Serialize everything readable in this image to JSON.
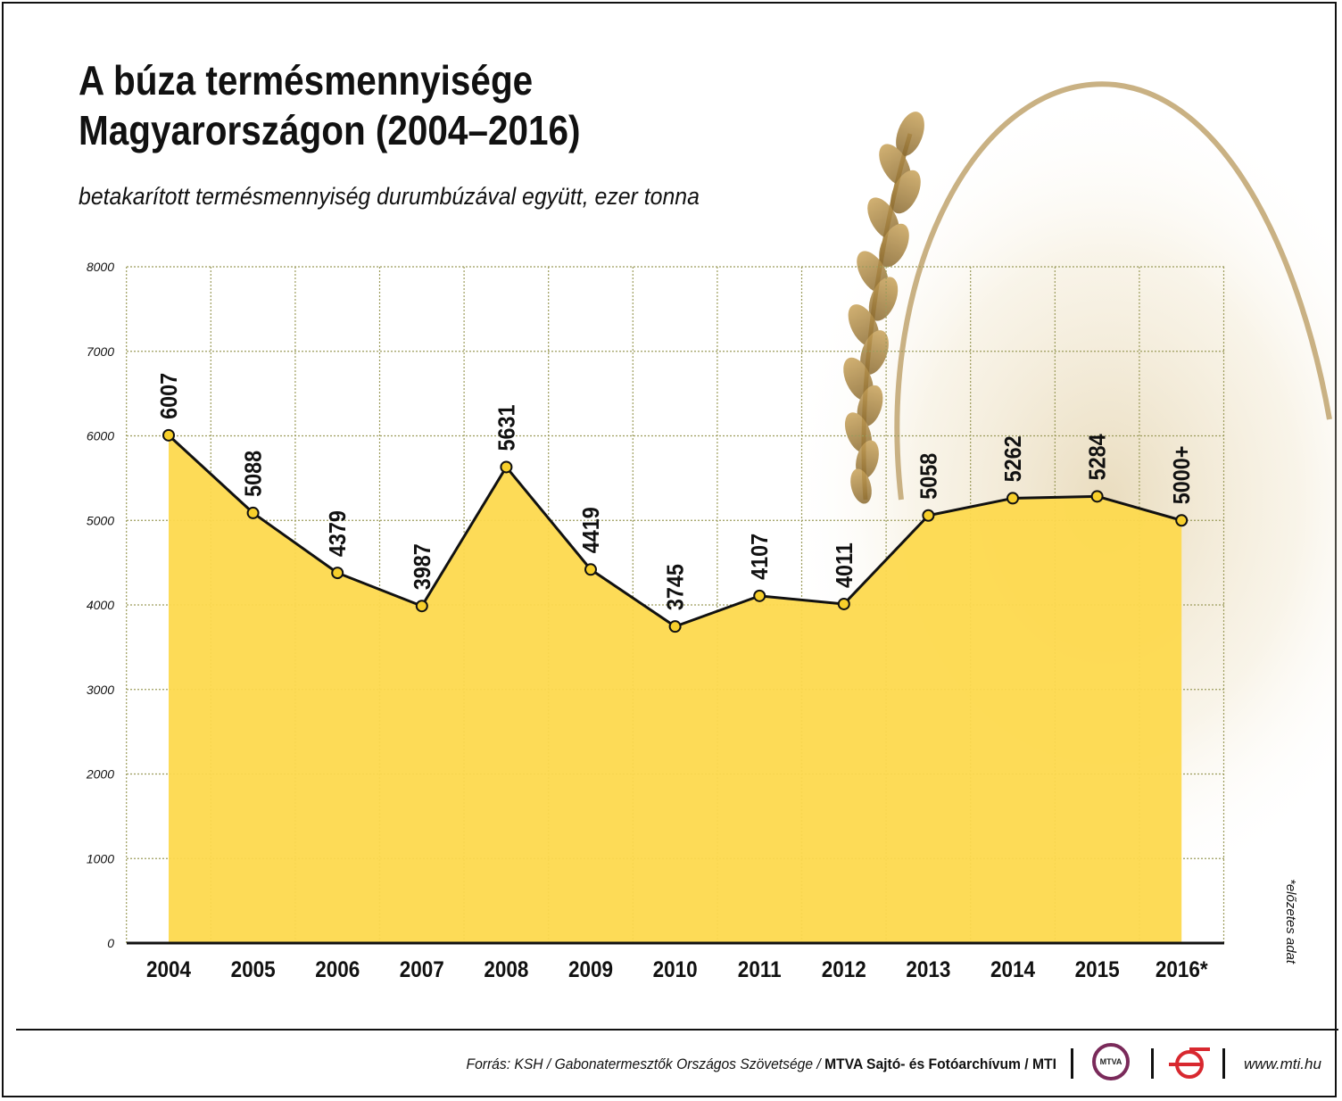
{
  "title": "A búza termésmennyisége Magyarországon (2004–2016)",
  "subtitle": "betakarított termésmennyiség durumbúzával együtt, ezer tonna",
  "note": "*előzetes adat",
  "footer": {
    "source_prefix": "Forrás: KSH / Gabonatermesztők Országos Szövetsége / ",
    "source_bold": "MTVA Sajtó- és Fotóarchívum / MTI",
    "website": "www.mti.hu",
    "logo_mtva_text": "MTVA"
  },
  "colors": {
    "area_fill": "#fdd94e",
    "line": "#111111",
    "point_fill": "#f7cf2b",
    "grid": "#9c9c5c",
    "logo_mtva": "#7a2a5a",
    "logo_mti": "#d8282f"
  },
  "chart_data": {
    "type": "area",
    "categories": [
      "2004",
      "2005",
      "2006",
      "2007",
      "2008",
      "2009",
      "2010",
      "2011",
      "2012",
      "2013",
      "2014",
      "2015",
      "2016*"
    ],
    "values": [
      6007,
      5088,
      4379,
      3987,
      5631,
      4419,
      3745,
      4107,
      4011,
      5058,
      5262,
      5284,
      5000
    ],
    "value_labels": [
      "6007",
      "5088",
      "4379",
      "3987",
      "5631",
      "4419",
      "3745",
      "4107",
      "4011",
      "5058",
      "5262",
      "5284",
      "5000+"
    ],
    "yticks": [
      "0",
      "1000",
      "2000",
      "3000",
      "4000",
      "5000",
      "6000",
      "7000",
      "8000"
    ],
    "ylim": [
      0,
      8000
    ],
    "grid": true,
    "xlabel": "",
    "ylabel": ""
  }
}
